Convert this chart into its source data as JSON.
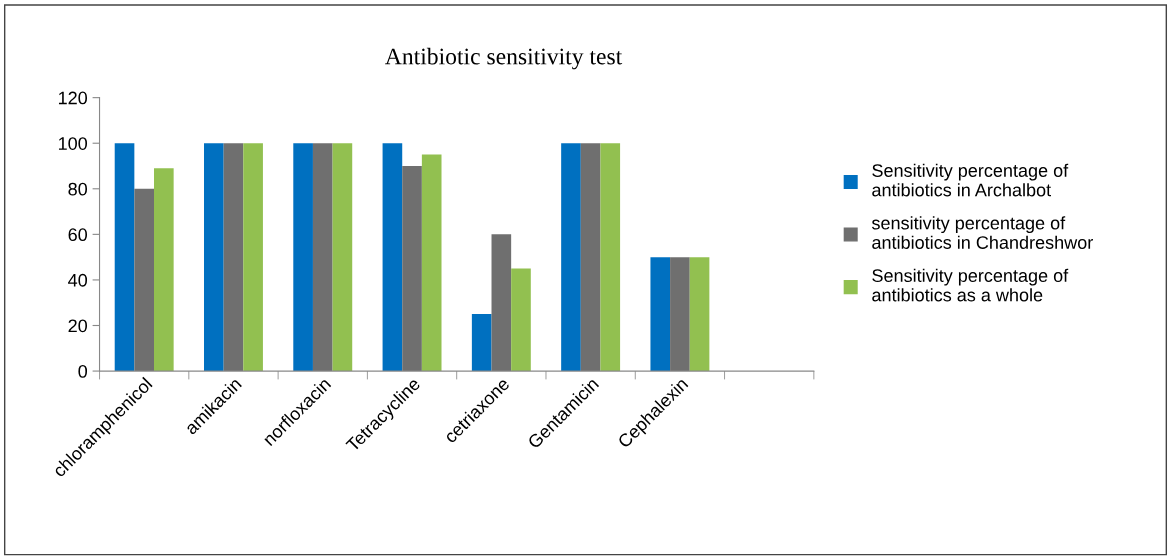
{
  "chart_data": {
    "type": "bar",
    "title": "Antibiotic sensitivity test",
    "categories": [
      "chloramphenicol",
      "amikacin",
      "norfloxacin",
      "Tetracycline",
      "cetriaxone",
      "Gentamicin",
      "Cephalexin",
      null
    ],
    "series": [
      {
        "name": "Sensitivity percentage of antibiotics in Archalbot",
        "color": "#0070c0",
        "values": [
          100,
          100,
          100,
          100,
          25,
          100,
          50,
          null
        ]
      },
      {
        "name": "sensitivity percentage of antibiotics in Chandreshwor",
        "color": "#6f6f6f",
        "values": [
          80,
          100,
          100,
          90,
          60,
          100,
          50,
          null
        ]
      },
      {
        "name": "Sensitivity percentage of antibiotics as a whole",
        "color": "#92c050",
        "values": [
          89,
          100,
          100,
          95,
          45,
          100,
          50,
          null
        ]
      }
    ],
    "ylim": [
      0,
      120
    ],
    "yticks": [
      0,
      20,
      40,
      60,
      80,
      100,
      120
    ],
    "grid": false,
    "legend": "right"
  }
}
